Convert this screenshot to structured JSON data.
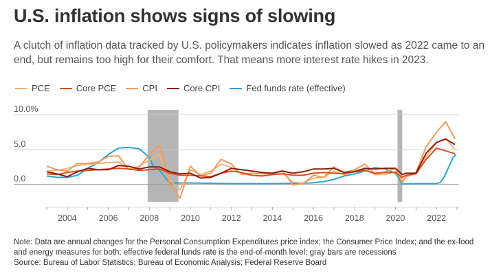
{
  "title": "U.S. inflation shows signs of slowing",
  "subtitle": "A clutch of inflation data tracked by U.S. policymakers indicates inflation slowed as 2022 came to an end, but remains too high for their comfort. That means more interest rate hikes in 2023.",
  "notes": {
    "note": "Note: Data are annual changes for the Personal Consumption Expenditures price index; the Consumer Price Index; and the ex-food and energy measures for both; effective federal funds rate is the end-of-month level; gray bars are recessions",
    "source": "Source: Bureau of Labor Statistics; Bureau of Economic Analysis; Federal Reserve Board"
  },
  "chart_data": {
    "type": "line",
    "title": "",
    "xlabel": "",
    "ylabel": "",
    "xlim": [
      2003,
      2023.1
    ],
    "ylim": [
      -2.5,
      10.5
    ],
    "yticks": [
      0,
      5,
      10
    ],
    "ytick_labels": [
      "0.0",
      "5.0",
      "10.0%"
    ],
    "xticks": [
      2004,
      2006,
      2008,
      2010,
      2012,
      2014,
      2016,
      2018,
      2020,
      2022
    ],
    "grid": "horizontal",
    "legend": "top-left",
    "recessions": [
      [
        2007.92,
        2009.42
      ],
      [
        2020.1,
        2020.33
      ]
    ],
    "series": [
      {
        "name": "PCE",
        "color": "#f2b477",
        "x": [
          2003,
          2003.5,
          2004,
          2004.5,
          2005,
          2005.5,
          2006,
          2006.5,
          2007,
          2007.5,
          2008,
          2008.5,
          2009,
          2009.5,
          2010,
          2010.5,
          2011,
          2011.5,
          2012,
          2012.5,
          2013,
          2013.5,
          2014,
          2014.5,
          2015,
          2015.5,
          2016,
          2016.5,
          2017,
          2017.5,
          2018,
          2018.5,
          2019,
          2019.5,
          2020,
          2020.33,
          2020.5,
          2021,
          2021.5,
          2022,
          2022.45,
          2022.9
        ],
        "y": [
          1.9,
          2.0,
          2.3,
          2.7,
          2.9,
          3.0,
          3.1,
          3.2,
          2.2,
          2.6,
          3.5,
          4.3,
          0.6,
          -0.8,
          2.1,
          1.4,
          1.9,
          2.9,
          2.4,
          1.5,
          1.3,
          1.2,
          1.4,
          1.6,
          0.3,
          0.2,
          0.9,
          1.0,
          1.9,
          1.4,
          2.0,
          2.2,
          1.4,
          1.4,
          1.8,
          0.5,
          1.0,
          1.6,
          4.0,
          6.0,
          6.6,
          5.0
        ]
      },
      {
        "name": "Core PCE",
        "color": "#d9501e",
        "x": [
          2003,
          2003.5,
          2004,
          2004.5,
          2005,
          2005.5,
          2006,
          2006.5,
          2007,
          2007.5,
          2008,
          2008.5,
          2009,
          2009.5,
          2010,
          2010.5,
          2011,
          2011.5,
          2012,
          2012.5,
          2013,
          2013.5,
          2014,
          2014.5,
          2015,
          2015.5,
          2016,
          2016.5,
          2017,
          2017.5,
          2018,
          2018.5,
          2019,
          2019.5,
          2020,
          2020.33,
          2020.5,
          2021,
          2021.5,
          2022,
          2022.45,
          2022.9
        ],
        "y": [
          1.5,
          1.4,
          1.7,
          1.9,
          2.0,
          2.1,
          2.2,
          2.3,
          2.2,
          2.0,
          2.1,
          2.2,
          1.6,
          1.3,
          1.3,
          1.2,
          1.1,
          1.6,
          1.9,
          1.7,
          1.3,
          1.2,
          1.4,
          1.5,
          1.3,
          1.3,
          1.6,
          1.7,
          1.6,
          1.5,
          1.8,
          2.0,
          1.6,
          1.7,
          1.7,
          1.0,
          1.3,
          1.5,
          3.6,
          5.2,
          4.8,
          4.4
        ]
      },
      {
        "name": "CPI",
        "color": "#f39b5b",
        "x": [
          2003,
          2003.5,
          2004,
          2004.5,
          2005,
          2005.5,
          2006,
          2006.5,
          2007,
          2007.5,
          2008,
          2008.5,
          2009,
          2009.5,
          2010,
          2010.5,
          2011,
          2011.5,
          2012,
          2012.5,
          2013,
          2013.5,
          2014,
          2014.5,
          2015,
          2015.5,
          2016,
          2016.5,
          2017,
          2017.5,
          2018,
          2018.5,
          2019,
          2019.5,
          2020,
          2020.33,
          2020.5,
          2021,
          2021.5,
          2022,
          2022.45,
          2022.9
        ],
        "y": [
          2.6,
          2.1,
          1.9,
          3.0,
          3.0,
          3.2,
          4.0,
          4.1,
          2.1,
          2.4,
          4.3,
          5.6,
          0.0,
          -2.0,
          2.6,
          1.2,
          1.6,
          3.6,
          2.9,
          1.4,
          1.6,
          1.5,
          1.6,
          2.0,
          -0.1,
          0.1,
          1.3,
          1.0,
          2.5,
          1.7,
          2.1,
          2.9,
          1.5,
          1.8,
          2.3,
          0.2,
          1.2,
          1.7,
          5.4,
          7.5,
          9.0,
          6.5
        ]
      },
      {
        "name": "Core CPI",
        "color": "#8b1e0c",
        "x": [
          2003,
          2003.5,
          2004,
          2004.5,
          2005,
          2005.5,
          2006,
          2006.5,
          2007,
          2007.5,
          2008,
          2008.5,
          2009,
          2009.5,
          2010,
          2010.5,
          2011,
          2011.5,
          2012,
          2012.5,
          2013,
          2013.5,
          2014,
          2014.5,
          2015,
          2015.5,
          2016,
          2016.5,
          2017,
          2017.5,
          2018,
          2018.5,
          2019,
          2019.5,
          2020,
          2020.33,
          2020.5,
          2021,
          2021.5,
          2022,
          2022.45,
          2022.9
        ],
        "y": [
          1.8,
          1.5,
          1.1,
          1.8,
          2.3,
          2.1,
          2.1,
          2.7,
          2.6,
          2.2,
          2.5,
          2.5,
          1.8,
          1.5,
          1.6,
          0.9,
          1.0,
          1.6,
          2.3,
          2.1,
          1.9,
          1.7,
          1.6,
          1.9,
          1.6,
          1.8,
          2.2,
          2.2,
          2.3,
          1.7,
          1.8,
          2.3,
          2.2,
          2.3,
          2.3,
          1.4,
          1.6,
          1.6,
          4.5,
          6.0,
          6.5,
          5.7
        ]
      },
      {
        "name": "Fed funds rate (effective)",
        "color": "#2aa3d8",
        "x": [
          2003,
          2003.5,
          2004,
          2004.5,
          2005,
          2005.5,
          2006,
          2006.5,
          2007,
          2007.5,
          2008,
          2008.2,
          2008.5,
          2008.8,
          2009,
          2009.5,
          2010,
          2012,
          2014,
          2015.9,
          2016.5,
          2017,
          2017.5,
          2018,
          2018.5,
          2019,
          2019.5,
          2020,
          2020.2,
          2020.3,
          2021,
          2022,
          2022.2,
          2022.4,
          2022.6,
          2022.8,
          2022.95
        ],
        "y": [
          1.2,
          1.0,
          1.0,
          1.3,
          2.3,
          3.1,
          4.3,
          5.2,
          5.3,
          5.1,
          3.9,
          2.6,
          2.0,
          0.9,
          0.2,
          0.2,
          0.2,
          0.1,
          0.1,
          0.2,
          0.4,
          0.7,
          1.2,
          1.5,
          1.9,
          2.4,
          2.2,
          1.6,
          0.7,
          0.05,
          0.1,
          0.1,
          0.3,
          1.2,
          2.5,
          3.8,
          4.3
        ]
      }
    ]
  }
}
